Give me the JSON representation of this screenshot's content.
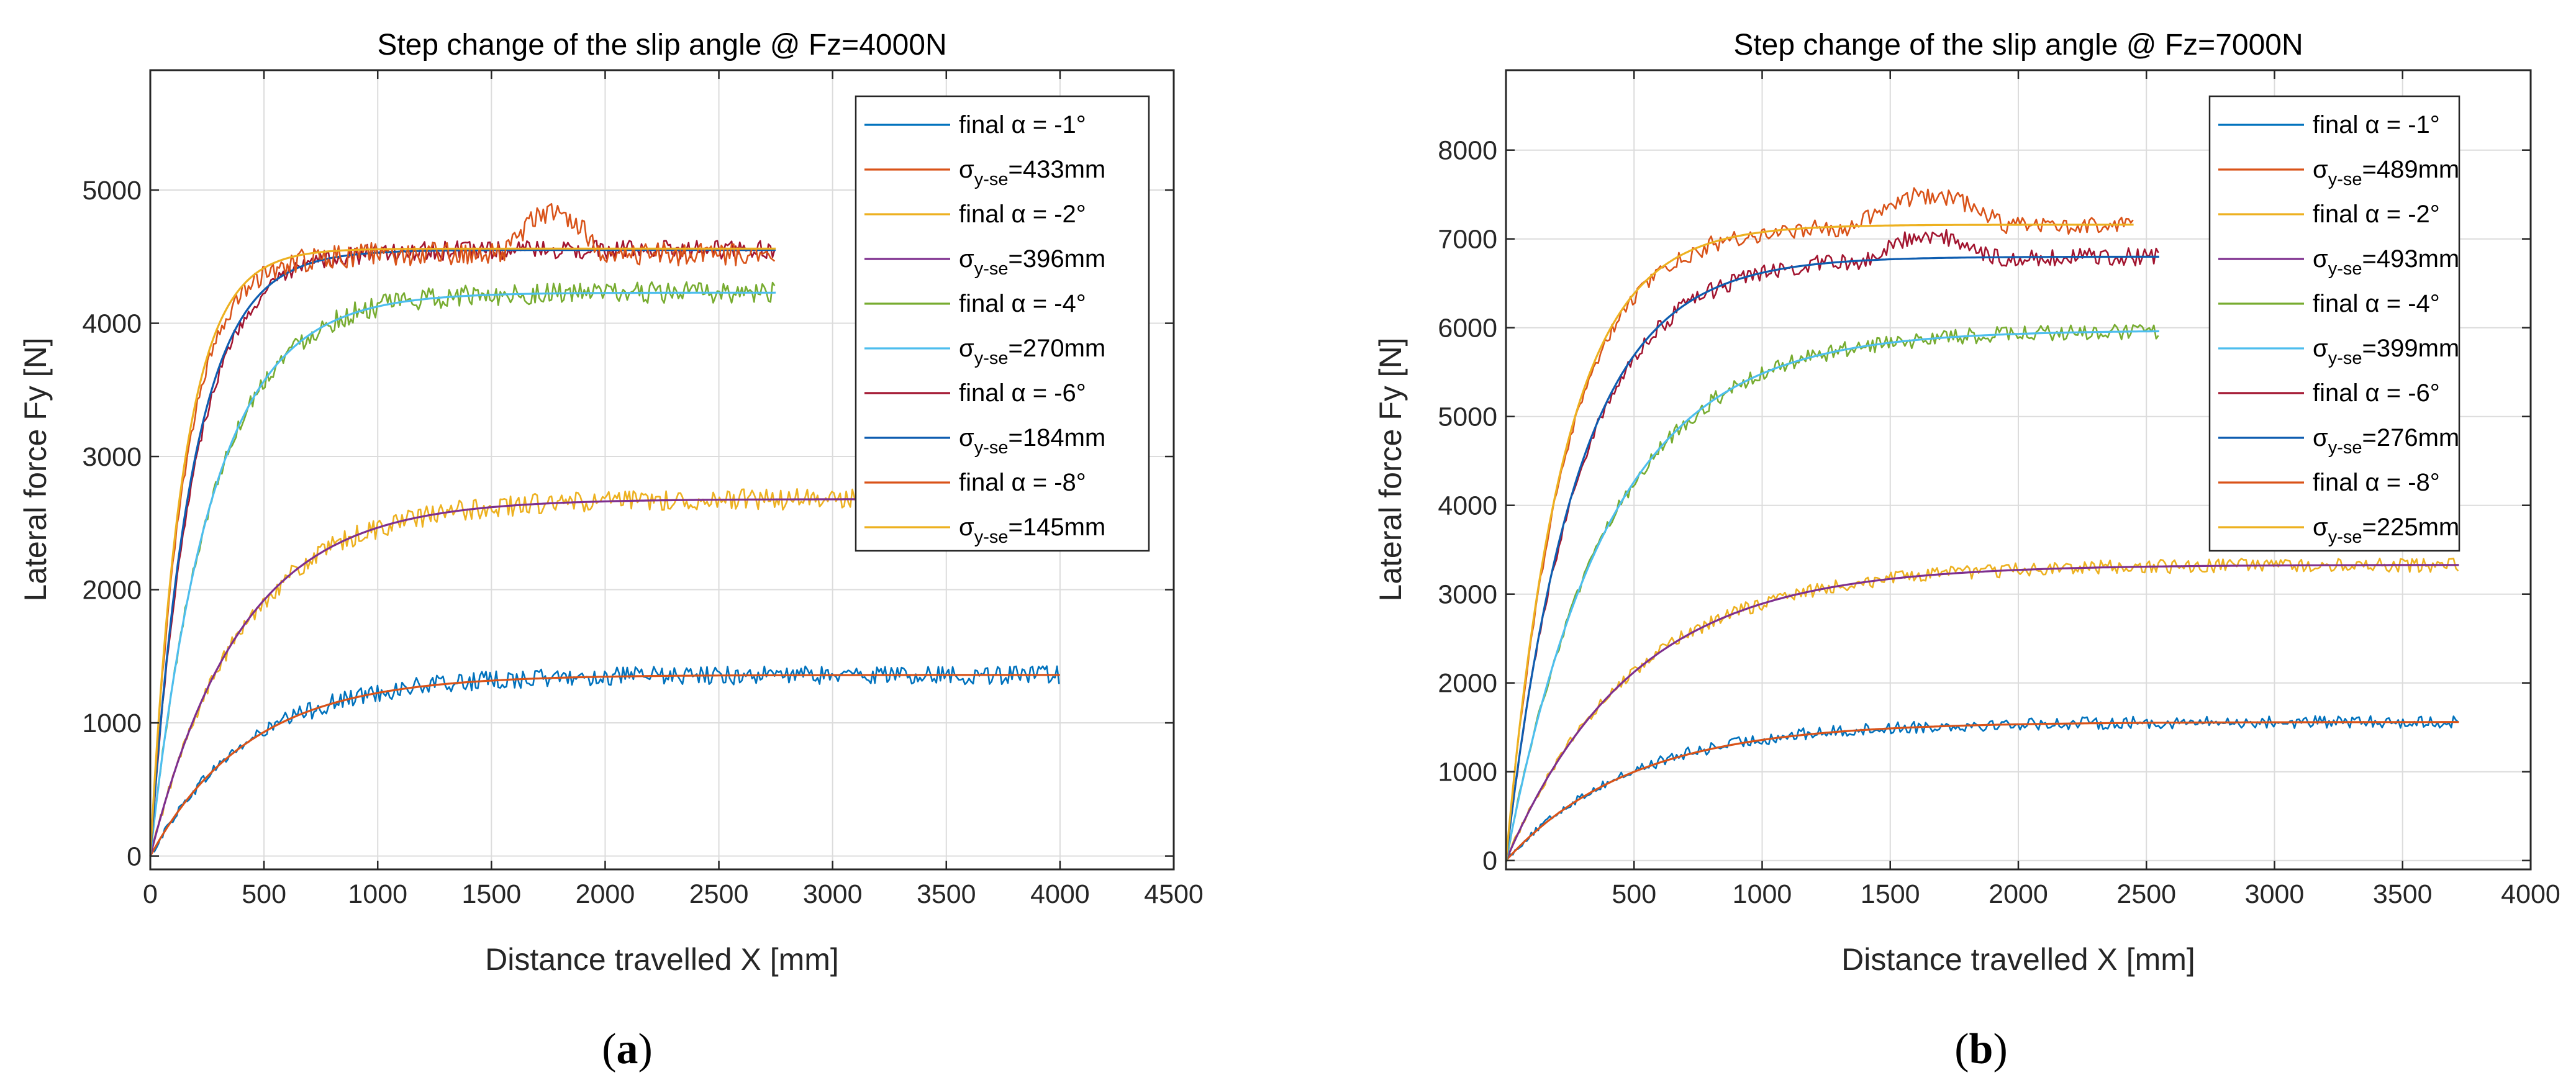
{
  "figure": {
    "captions": [
      {
        "open": "(",
        "letter": "a",
        "close": ")"
      },
      {
        "open": "(",
        "letter": "b",
        "close": ")"
      }
    ]
  },
  "series_colors": [
    "#0072BD",
    "#D95319",
    "#EDB120",
    "#7E2F8E",
    "#77AC30",
    "#4DBEEE",
    "#A2142F",
    "#0E5DB0",
    "#D95319",
    "#EDB120"
  ],
  "chart_data": [
    {
      "type": "line",
      "title": "Step change of the slip angle @ Fz=4000N",
      "xlabel": "Distance travelled X [mm]",
      "ylabel": "Lateral force Fy [N]",
      "xlim": [
        0,
        4500
      ],
      "ylim": [
        -100,
        5900
      ],
      "xticks": [
        0,
        500,
        1000,
        1500,
        2000,
        2500,
        3000,
        3500,
        4000,
        4500
      ],
      "yticks": [
        0,
        1000,
        2000,
        3000,
        4000,
        5000
      ],
      "grid": true,
      "legend_position": "top-right",
      "series": [
        {
          "name": "final α = -1°",
          "kind": "measured",
          "steady": 1360,
          "sigma": 430,
          "x_end": 4000,
          "noise": 70
        },
        {
          "name": "σ=433mm",
          "symbol": "σ",
          "sub": "y-se",
          "value": "=433mm",
          "kind": "fit",
          "steady": 1360,
          "sigma": 433,
          "x_end": 4000
        },
        {
          "name": "final α = -2°",
          "kind": "measured",
          "steady": 2680,
          "sigma": 400,
          "x_end": 4000,
          "noise": 80
        },
        {
          "name": "σ=396mm",
          "symbol": "σ",
          "sub": "y-se",
          "value": "=396mm",
          "kind": "fit",
          "steady": 2680,
          "sigma": 396,
          "x_end": 4000
        },
        {
          "name": "final α = -4°",
          "kind": "measured",
          "steady": 4230,
          "sigma": 270,
          "x_end": 2750,
          "noise": 80
        },
        {
          "name": "σ=270mm",
          "symbol": "σ",
          "sub": "y-se",
          "value": "=270mm",
          "kind": "fit",
          "steady": 4230,
          "sigma": 270,
          "x_end": 2750
        },
        {
          "name": "final α = -6°",
          "kind": "measured",
          "steady": 4550,
          "sigma": 190,
          "x_end": 2750,
          "noise": 70
        },
        {
          "name": "σ=184mm",
          "symbol": "σ",
          "sub": "y-se",
          "value": "=184mm",
          "kind": "fit",
          "steady": 4550,
          "sigma": 184,
          "x_end": 2750
        },
        {
          "name": "final α = -8°",
          "kind": "measured",
          "steady": 4520,
          "sigma": 150,
          "x_end": 2750,
          "noise": 90,
          "bump": [
            1550,
            2000,
            300
          ]
        },
        {
          "name": "σ=145mm",
          "symbol": "σ",
          "sub": "y-se",
          "value": "=145mm",
          "kind": "fit",
          "steady": 4560,
          "sigma": 145,
          "x_end": 2750
        }
      ]
    },
    {
      "type": "line",
      "title": "Step change of the slip angle @ Fz=7000N",
      "xlabel": "Distance travelled X [mm]",
      "ylabel": "Lateral force Fy [N]",
      "xlim": [
        0,
        4000
      ],
      "ylim": [
        -100,
        8900
      ],
      "xticks": [
        500,
        1000,
        1500,
        2000,
        2500,
        3000,
        3500,
        4000
      ],
      "yticks": [
        0,
        1000,
        2000,
        3000,
        4000,
        5000,
        6000,
        7000,
        8000
      ],
      "grid": true,
      "legend_position": "top-right",
      "series": [
        {
          "name": "final α = -1°",
          "kind": "measured",
          "steady": 1560,
          "sigma": 480,
          "x_end": 3720,
          "noise": 70
        },
        {
          "name": "σ=489mm",
          "symbol": "σ",
          "sub": "y-se",
          "value": "=489mm",
          "kind": "fit",
          "steady": 1560,
          "sigma": 489,
          "x_end": 3720
        },
        {
          "name": "final α = -2°",
          "kind": "measured",
          "steady": 3330,
          "sigma": 490,
          "x_end": 3720,
          "noise": 80
        },
        {
          "name": "σ=493mm",
          "symbol": "σ",
          "sub": "y-se",
          "value": "=493mm",
          "kind": "fit",
          "steady": 3330,
          "sigma": 493,
          "x_end": 3720
        },
        {
          "name": "final α = -4°",
          "kind": "measured",
          "steady": 5970,
          "sigma": 400,
          "x_end": 2550,
          "noise": 90
        },
        {
          "name": "σ=399mm",
          "symbol": "σ",
          "sub": "y-se",
          "value": "=399mm",
          "kind": "fit",
          "steady": 5970,
          "sigma": 399,
          "x_end": 2550
        },
        {
          "name": "final α = -6°",
          "kind": "measured",
          "steady": 6800,
          "sigma": 280,
          "x_end": 2550,
          "noise": 100,
          "bump": [
            1400,
            1900,
            250
          ]
        },
        {
          "name": "σ=276mm",
          "symbol": "σ",
          "sub": "y-se",
          "value": "=276mm",
          "kind": "fit",
          "steady": 6800,
          "sigma": 276,
          "x_end": 2550
        },
        {
          "name": "final α = -8°",
          "kind": "measured",
          "steady": 7150,
          "sigma": 230,
          "x_end": 2450,
          "noise": 100,
          "bump": [
            1350,
            1950,
            350
          ]
        },
        {
          "name": "σ=225mm",
          "symbol": "σ",
          "sub": "y-se",
          "value": "=225mm",
          "kind": "fit",
          "steady": 7160,
          "sigma": 225,
          "x_end": 2450
        }
      ]
    }
  ]
}
